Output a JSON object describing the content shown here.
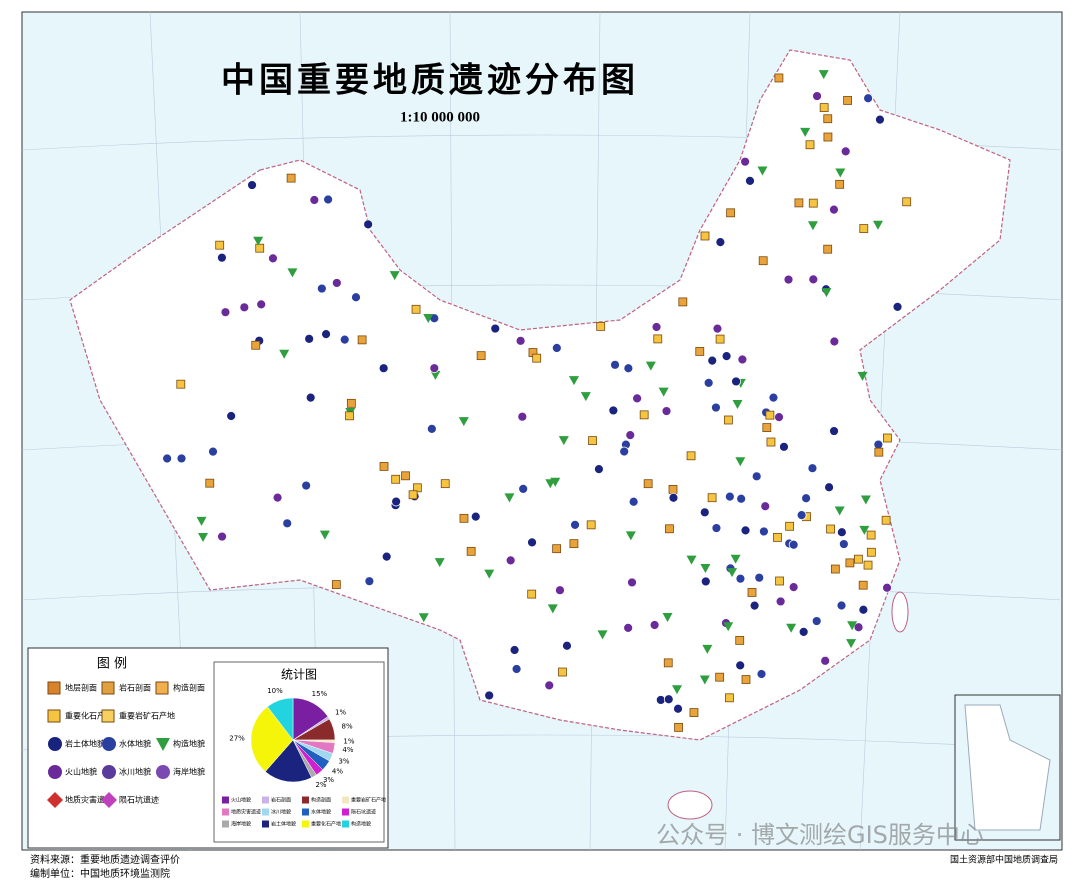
{
  "header": {
    "title": "中国重要地质遗迹分布图",
    "scale": "1:10 000 000"
  },
  "legend": {
    "title": "图 例",
    "items": [
      {
        "name": "地层剖面",
        "color": "#d9822b"
      },
      {
        "name": "岩石剖面",
        "color": "#e0a040"
      },
      {
        "name": "构造剖面",
        "color": "#f0b050"
      },
      {
        "name": "重要化石产地",
        "color": "#f5c542"
      },
      {
        "name": "重要岩矿石产地",
        "color": "#f7d060"
      },
      {
        "name": "岩土体地貌",
        "color": "#1a237e"
      },
      {
        "name": "水体地貌",
        "color": "#2a3fa0"
      },
      {
        "name": "构造地貌",
        "color": "#2e9e3e"
      },
      {
        "name": "火山地貌",
        "color": "#6a2a9a"
      },
      {
        "name": "冰川地貌",
        "color": "#5a3a9a"
      },
      {
        "name": "海岸地貌",
        "color": "#7a4ab0"
      },
      {
        "name": "地质灾害遗迹",
        "color": "#d03030"
      },
      {
        "name": "陨石坑遗迹",
        "color": "#c040c0"
      }
    ]
  },
  "chart_data": {
    "type": "pie",
    "title": "统计图",
    "categories": [
      "火山地貌",
      "岩石剖面",
      "构造剖面",
      "重要岩矿石产地",
      "地质灾害遗迹",
      "冰川地貌",
      "水体地貌",
      "陨石坑遗迹",
      "海岸地貌",
      "岩土体地貌",
      "重要化石产地",
      "构造地貌"
    ],
    "values": [
      15,
      1,
      8,
      1,
      4,
      3,
      4,
      3,
      2,
      18,
      27,
      10
    ],
    "value_labels": [
      "15%",
      "1%",
      "8%",
      "1%",
      "4%",
      "3%",
      "4%",
      "3%",
      "2%",
      null,
      "27%",
      "10%"
    ],
    "colors": [
      "#7b1fa2",
      "#c8b4e6",
      "#8b2a2a",
      "#f0e8c0",
      "#e377c2",
      "#9fd8f0",
      "#2060c0",
      "#d020d0",
      "#aaaaaa",
      "#1a237e",
      "#f5f50a",
      "#22d3e0"
    ]
  },
  "footer": {
    "source": "资料来源：重要地质遗迹调查评价",
    "compiler": "编制单位：中国地质环境监测院",
    "publisher": "国土资源部中国地质调查局"
  },
  "watermark": "公众号 · 博文测绘GIS服务中心"
}
